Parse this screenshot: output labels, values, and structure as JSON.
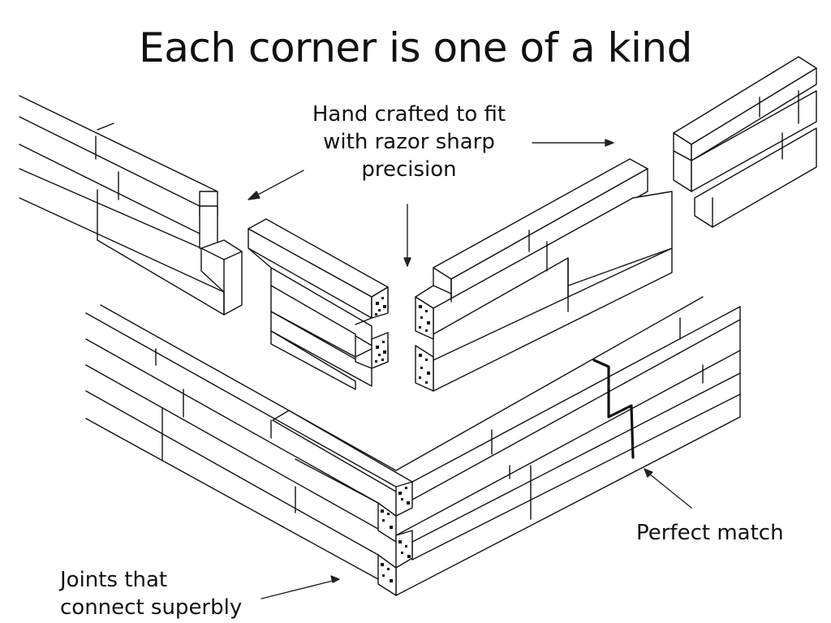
{
  "title": "Each corner is one of a kind",
  "annotations": {
    "hand_crafted": [
      "Hand crafted to fit",
      "with razor sharp",
      "precision"
    ],
    "perfect_match": "Perfect match",
    "joints": [
      "Joints that",
      "connect superbly"
    ]
  }
}
